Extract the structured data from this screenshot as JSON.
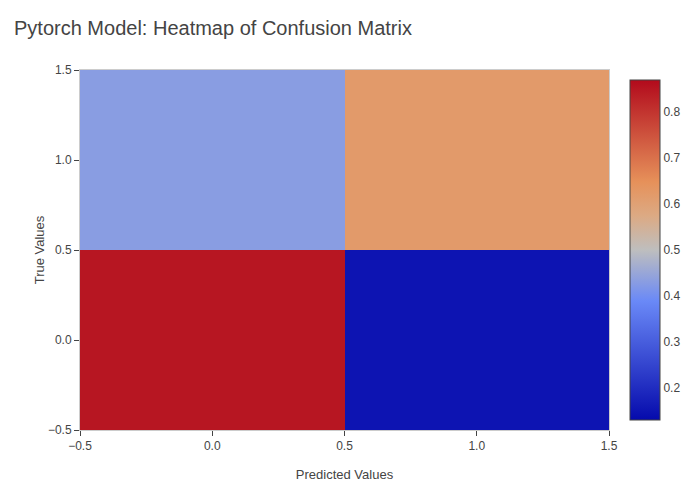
{
  "chart_data": {
    "type": "heatmap",
    "title": "Pytorch Model: Heatmap of Confusion Matrix",
    "xlabel": "Predicted Values",
    "ylabel": "True Values",
    "x": [
      0,
      1
    ],
    "y": [
      0,
      1
    ],
    "matrix": [
      [
        0.85,
        0.15
      ],
      [
        0.43,
        0.62
      ]
    ],
    "colorbar_range": [
      0.13,
      0.87
    ],
    "colorbar_ticks": [
      0.2,
      0.3,
      0.4,
      0.5,
      0.6,
      0.7,
      0.8
    ],
    "xlim": [
      -0.5,
      1.5
    ],
    "xticks": [
      {
        "value": -0.5,
        "label": "−0.5"
      },
      {
        "value": 0,
        "label": "0.0"
      },
      {
        "value": 0.5,
        "label": "0.5"
      },
      {
        "value": 1,
        "label": "1.0"
      },
      {
        "value": 1.5,
        "label": "1.5"
      }
    ],
    "ylim": [
      -0.5,
      1.5
    ],
    "yticks": [
      {
        "value": -0.5,
        "label": "−0.5"
      },
      {
        "value": 0,
        "label": "0.0"
      },
      {
        "value": 0.5,
        "label": "0.5"
      },
      {
        "value": 1,
        "label": "1.0"
      },
      {
        "value": 1.5,
        "label": "1.5"
      }
    ],
    "grid": false
  }
}
